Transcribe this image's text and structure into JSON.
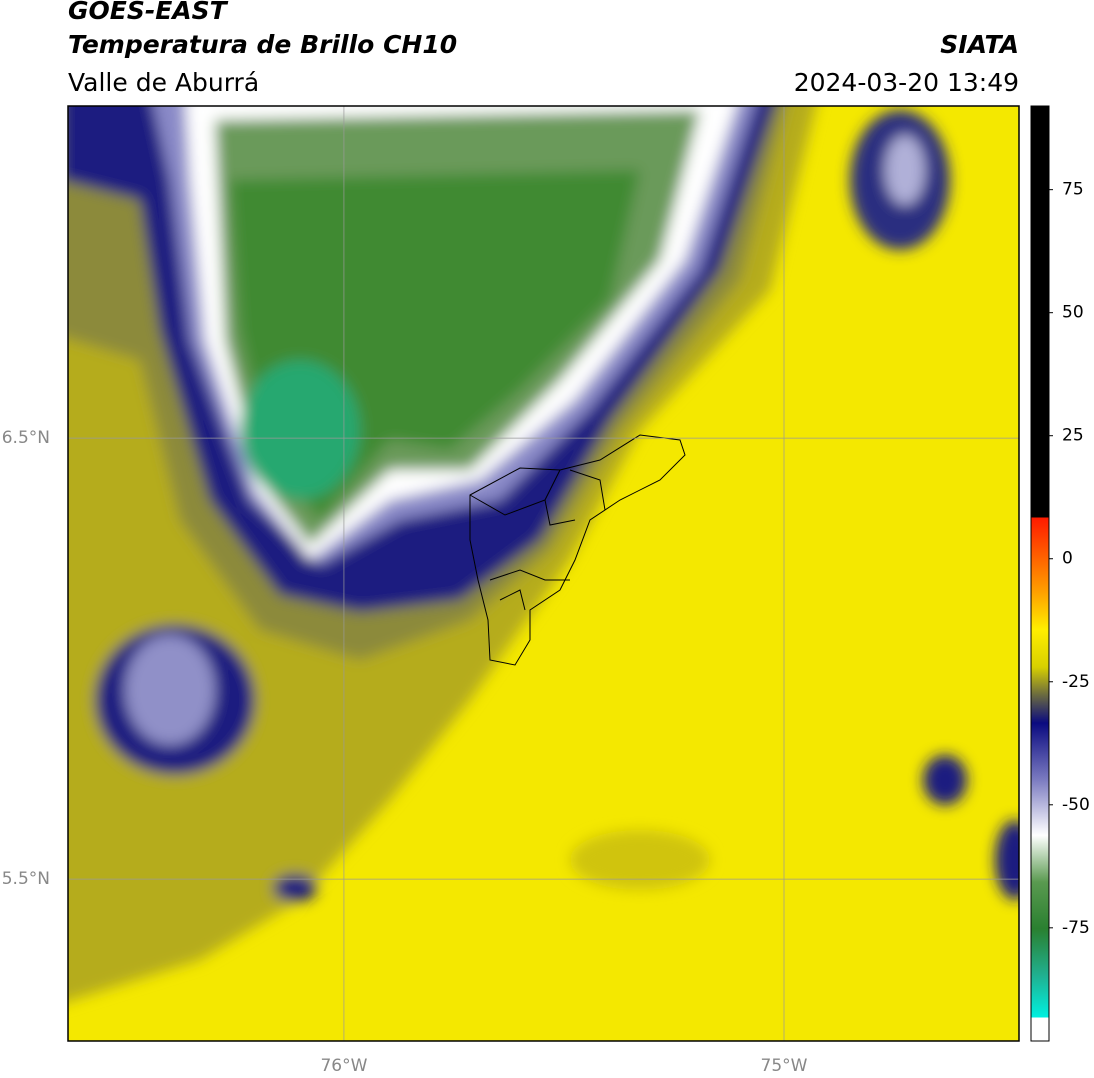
{
  "header": {
    "title": "GOES-EAST",
    "subtitle": "Temperatura de Brillo CH10",
    "region": "Valle de Aburrá",
    "source": "SIATA",
    "datetime": "2024-03-20 13:49"
  },
  "map": {
    "xlim": [
      -76.627,
      -74.466
    ],
    "ylim": [
      5.133,
      7.253
    ],
    "xticks": [
      {
        "value": -76,
        "label": "76°W"
      },
      {
        "value": -75,
        "label": "75°W"
      }
    ],
    "yticks": [
      {
        "value": 6.5,
        "label": "6.5°N"
      },
      {
        "value": 5.5,
        "label": "5.5°N"
      }
    ],
    "grid": true
  },
  "colorbar": {
    "ylim": [
      -98,
      92
    ],
    "yticks": [
      75,
      50,
      25,
      0,
      -25,
      -50,
      -75
    ]
  }
}
